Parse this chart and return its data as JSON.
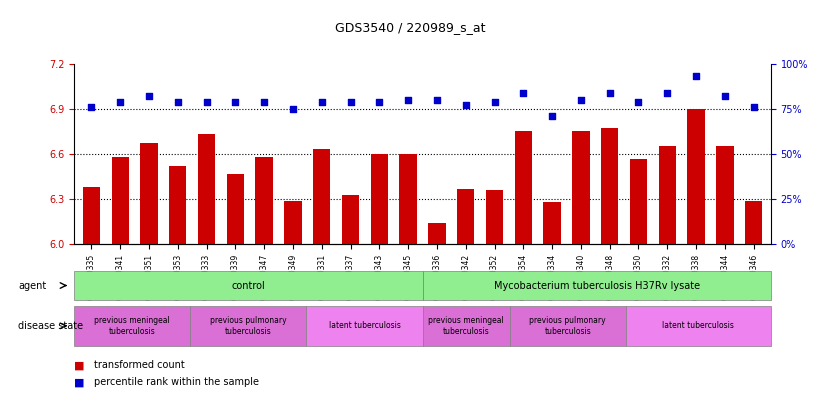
{
  "title": "GDS3540 / 220989_s_at",
  "samples": [
    "GSM280335",
    "GSM280341",
    "GSM280351",
    "GSM280353",
    "GSM280333",
    "GSM280339",
    "GSM280347",
    "GSM280349",
    "GSM280331",
    "GSM280337",
    "GSM280343",
    "GSM280345",
    "GSM280336",
    "GSM280342",
    "GSM280352",
    "GSM280354",
    "GSM280334",
    "GSM280340",
    "GSM280348",
    "GSM280350",
    "GSM280332",
    "GSM280338",
    "GSM280344",
    "GSM280346"
  ],
  "transformed_count": [
    6.38,
    6.58,
    6.67,
    6.52,
    6.73,
    6.47,
    6.58,
    6.29,
    6.63,
    6.33,
    6.6,
    6.6,
    6.14,
    6.37,
    6.36,
    6.75,
    6.28,
    6.75,
    6.77,
    6.57,
    6.65,
    6.9,
    6.65,
    6.29
  ],
  "percentile_rank": [
    76,
    79,
    82,
    79,
    79,
    79,
    79,
    75,
    79,
    79,
    79,
    80,
    80,
    77,
    79,
    84,
    71,
    80,
    84,
    79,
    84,
    93,
    82,
    76
  ],
  "ylim_left": [
    6.0,
    7.2
  ],
  "ylim_right": [
    0,
    100
  ],
  "yticks_left": [
    6.0,
    6.3,
    6.6,
    6.9,
    7.2
  ],
  "yticks_right": [
    0,
    25,
    50,
    75,
    100
  ],
  "bar_color": "#CC0000",
  "dot_color": "#0000CC",
  "agent_groups": [
    {
      "label": "control",
      "start": 0,
      "end": 11,
      "color": "#90EE90"
    },
    {
      "label": "Mycobacterium tuberculosis H37Rv lysate",
      "start": 12,
      "end": 23,
      "color": "#90EE90"
    }
  ],
  "disease_groups": [
    {
      "label": "previous meningeal\ntuberculosis",
      "start": 0,
      "end": 3,
      "color": "#DA70D6"
    },
    {
      "label": "previous pulmonary\ntuberculosis",
      "start": 4,
      "end": 7,
      "color": "#DA70D6"
    },
    {
      "label": "latent tuberculosis",
      "start": 8,
      "end": 11,
      "color": "#EE82EE"
    },
    {
      "label": "previous meningeal\ntuberculosis",
      "start": 12,
      "end": 14,
      "color": "#DA70D6"
    },
    {
      "label": "previous pulmonary\ntuberculosis",
      "start": 15,
      "end": 18,
      "color": "#DA70D6"
    },
    {
      "label": "latent tuberculosis",
      "start": 19,
      "end": 23,
      "color": "#EE82EE"
    }
  ]
}
